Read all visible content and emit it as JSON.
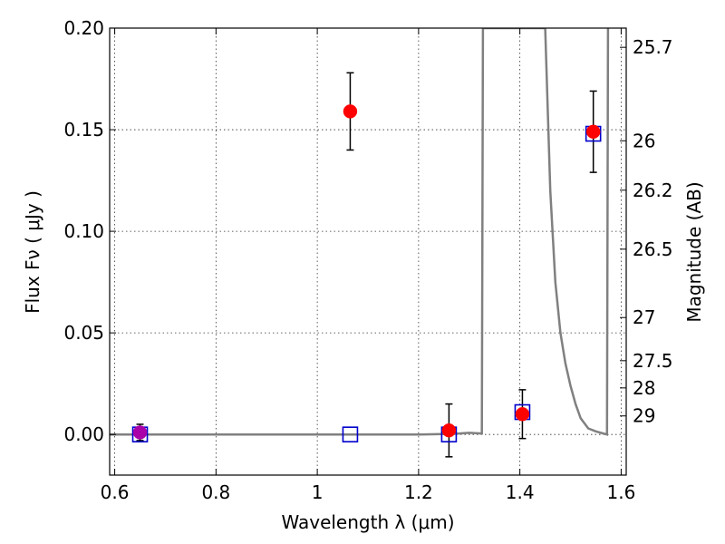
{
  "chart_data": {
    "type": "scatter",
    "xlabel": "Wavelength  λ (μm)",
    "ylabel": "Flux  Fν  ( μJy )",
    "y2label": "Magnitude (AB)",
    "xlim": [
      0.59,
      1.61
    ],
    "ylim": [
      -0.02,
      0.2
    ],
    "grid": true,
    "x_ticks": [
      {
        "value": 0.6,
        "label": "0.6"
      },
      {
        "value": 0.8,
        "label": "0.8"
      },
      {
        "value": 1.0,
        "label": "1"
      },
      {
        "value": 1.2,
        "label": "1.2"
      },
      {
        "value": 1.4,
        "label": "1.4"
      },
      {
        "value": 1.6,
        "label": "1.6"
      }
    ],
    "y_ticks": [
      {
        "value": 0.0,
        "label": "0.00"
      },
      {
        "value": 0.05,
        "label": "0.05"
      },
      {
        "value": 0.1,
        "label": "0.10"
      },
      {
        "value": 0.15,
        "label": "0.15"
      },
      {
        "value": 0.2,
        "label": "0.20"
      }
    ],
    "mag_ticks": [
      {
        "value": 25.7,
        "label": "25.7"
      },
      {
        "value": 26,
        "label": "26"
      },
      {
        "value": 26.2,
        "label": "26.2"
      },
      {
        "value": 26.5,
        "label": "26.5"
      },
      {
        "value": 27,
        "label": "27"
      },
      {
        "value": 27.5,
        "label": "27.5"
      },
      {
        "value": 28,
        "label": "28"
      },
      {
        "value": 29,
        "label": "29"
      }
    ],
    "observed": [
      {
        "x": 0.65,
        "y": 0.001,
        "err": 0.004,
        "color": "#aa00aa"
      },
      {
        "x": 1.065,
        "y": 0.159,
        "err": 0.019,
        "color": "#ff0000"
      },
      {
        "x": 1.26,
        "y": 0.002,
        "err": 0.013,
        "color": "#ff0000"
      },
      {
        "x": 1.405,
        "y": 0.01,
        "err": 0.012,
        "color": "#ff0000"
      },
      {
        "x": 1.545,
        "y": 0.149,
        "err": 0.02,
        "color": "#ff0000"
      }
    ],
    "model_points": [
      {
        "x": 0.65,
        "y": 0.0
      },
      {
        "x": 1.065,
        "y": 0.0
      },
      {
        "x": 1.26,
        "y": 0.0
      },
      {
        "x": 1.405,
        "y": 0.011
      },
      {
        "x": 1.545,
        "y": 0.148
      }
    ],
    "model_curve": [
      [
        0.59,
        0.0
      ],
      [
        1.0,
        0.0
      ],
      [
        1.2,
        0.0
      ],
      [
        1.27,
        0.0003
      ],
      [
        1.3,
        0.0008
      ],
      [
        1.325,
        0.0005
      ],
      [
        1.327,
        0.2
      ],
      [
        1.45,
        0.2
      ],
      [
        1.46,
        0.12
      ],
      [
        1.47,
        0.075
      ],
      [
        1.48,
        0.05
      ],
      [
        1.49,
        0.035
      ],
      [
        1.5,
        0.024
      ],
      [
        1.51,
        0.015
      ],
      [
        1.52,
        0.008
      ],
      [
        1.535,
        0.003
      ],
      [
        1.55,
        0.0015
      ],
      [
        1.572,
        0.0
      ],
      [
        1.574,
        0.2
      ]
    ],
    "colors": {
      "observed_face": "#ff0000",
      "model_edge": "#0000cc",
      "curve": "#808080",
      "errorbar": "#000000"
    }
  }
}
